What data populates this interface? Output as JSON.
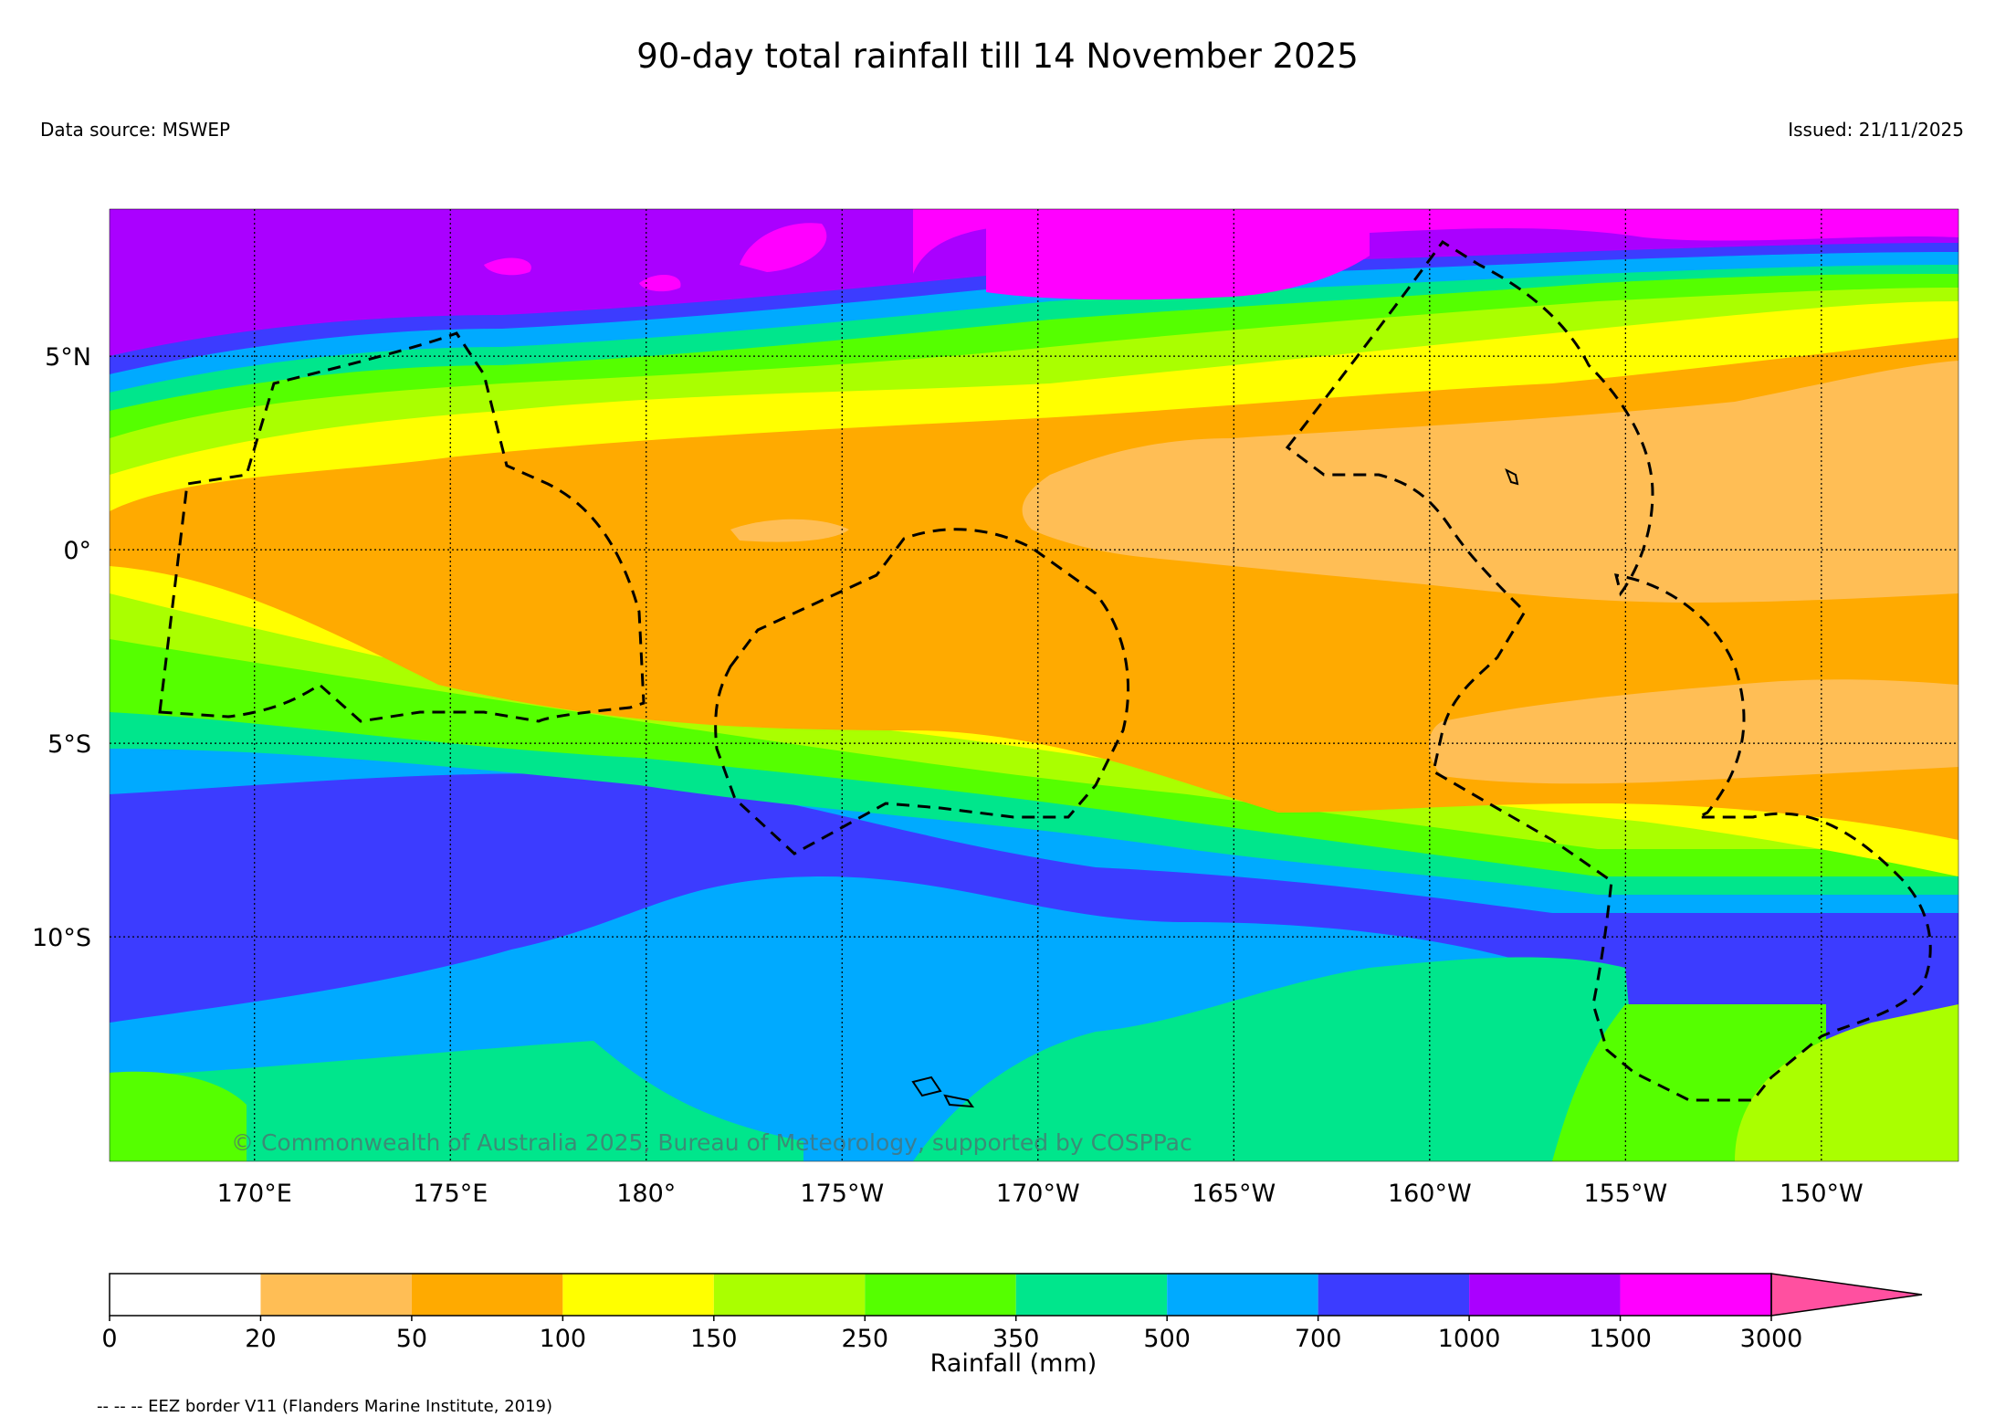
{
  "title": "90-day total rainfall till 14 November 2025",
  "data_source": "Data source: MSWEP",
  "issued": "Issued: 21/11/2025",
  "watermark": "© Commonwealth of Australia 2025, Bureau of Meteorology, supported by COSPPac",
  "footnote": "-- -- -- EEZ border V11 (Flanders Marine Institute, 2019)",
  "map": {
    "lon_range": [
      166.3,
      213.5
    ],
    "lat_range": [
      -15.8,
      8.8
    ],
    "lat_ticks": [
      {
        "value": 5,
        "label": "5°N"
      },
      {
        "value": 0,
        "label": "0°"
      },
      {
        "value": -5,
        "label": "5°S"
      },
      {
        "value": -10,
        "label": "10°S"
      }
    ],
    "lon_ticks": [
      {
        "value": 170,
        "label": "170°E"
      },
      {
        "value": 175,
        "label": "175°E"
      },
      {
        "value": 180,
        "label": "180°"
      },
      {
        "value": 185,
        "label": "175°W"
      },
      {
        "value": 190,
        "label": "170°W"
      },
      {
        "value": 195,
        "label": "165°W"
      },
      {
        "value": 200,
        "label": "160°W"
      },
      {
        "value": 205,
        "label": "155°W"
      },
      {
        "value": 210,
        "label": "150°W"
      }
    ],
    "gridlines": true,
    "border_style": "dashed"
  },
  "colorbar": {
    "label": "Rainfall (mm)",
    "ticks": [
      "0",
      "20",
      "50",
      "100",
      "150",
      "250",
      "350",
      "500",
      "700",
      "1000",
      "1500",
      "3000"
    ],
    "colors": [
      "#ffffff",
      "#ffbe55",
      "#ffaa00",
      "#ffff00",
      "#aaff00",
      "#55ff00",
      "#00e68c",
      "#00aaff",
      "#3c3cff",
      "#aa00ff",
      "#ff00ff"
    ],
    "extend_color": "#ff50a0"
  }
}
